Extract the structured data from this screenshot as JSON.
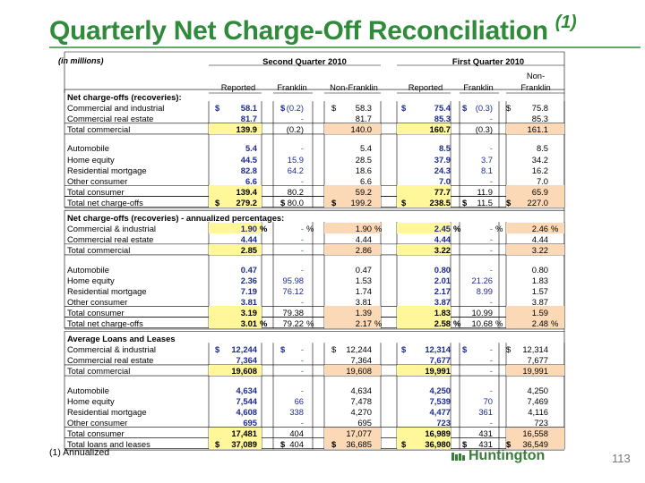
{
  "title": "Quarterly Net Charge-Off Reconciliation",
  "title_note": "(1)",
  "units": "(in millions)",
  "periods": [
    "Second Quarter 2010",
    "First Quarter 2010"
  ],
  "col_headers": [
    "Reported",
    "Franklin",
    "Non-Franklin",
    "Reported",
    "Franklin",
    "Non-Franklin"
  ],
  "col_header_nonfranklin_q1_top": "Non-",
  "col_header_nonfranklin_q1_bottom": "Franklin",
  "sections": [
    {
      "heading": "Net charge-offs (recoveries):",
      "rows": [
        {
          "label": "Commercial and industrial",
          "values": [
            "58.1",
            "(0.2)",
            "58.3",
            "75.4",
            "(0.3)",
            "75.8"
          ],
          "dollar": true
        },
        {
          "label": "Commercial real estate",
          "values": [
            "81.7",
            "-",
            "81.7",
            "85.3",
            "-",
            "85.3"
          ]
        },
        {
          "label": "Total commercial",
          "values": [
            "139.9",
            "(0.2)",
            "140.0",
            "160.7",
            "(0.3)",
            "161.1"
          ],
          "total": true
        },
        {
          "spacer": true
        },
        {
          "label": "Automobile",
          "values": [
            "5.4",
            "-",
            "5.4",
            "8.5",
            "-",
            "8.5"
          ]
        },
        {
          "label": "Home equity",
          "values": [
            "44.5",
            "15.9",
            "28.5",
            "37.9",
            "3.7",
            "34.2"
          ]
        },
        {
          "label": "Residential mortgage",
          "values": [
            "82.8",
            "64.2",
            "18.6",
            "24.3",
            "8.1",
            "16.2"
          ]
        },
        {
          "label": "Other consumer",
          "values": [
            "6.6",
            "-",
            "6.6",
            "7.0",
            "-",
            "7.0"
          ]
        },
        {
          "label": "Total consumer",
          "values": [
            "139.4",
            "80.2",
            "59.2",
            "77.7",
            "11.9",
            "65.9"
          ],
          "total": true
        },
        {
          "label": "Total net charge-offs",
          "values": [
            "279.2",
            "80.0",
            "199.2",
            "238.5",
            "11.5",
            "227.0"
          ],
          "total": true,
          "dollar": true,
          "grand": true
        }
      ]
    },
    {
      "heading": "Net charge-offs (recoveries) - annualized percentages:",
      "rows": [
        {
          "label": "Commercial & industrial",
          "values": [
            "1.90",
            "-",
            "1.90",
            "2.45",
            "-",
            "2.46"
          ],
          "pct": true
        },
        {
          "label": "Commercial real estate",
          "values": [
            "4.44",
            "-",
            "4.44",
            "4.44",
            "-",
            "4.44"
          ]
        },
        {
          "label": "Total commercial",
          "values": [
            "2.85",
            "-",
            "2.86",
            "3.22",
            "-",
            "3.22"
          ],
          "total": true
        },
        {
          "spacer": true
        },
        {
          "label": "Automobile",
          "values": [
            "0.47",
            "-",
            "0.47",
            "0.80",
            "-",
            "0.80"
          ]
        },
        {
          "label": "Home equity",
          "values": [
            "2.36",
            "95.98",
            "1.53",
            "2.01",
            "21.26",
            "1.83"
          ]
        },
        {
          "label": "Residential mortgage",
          "values": [
            "7.19",
            "76.12",
            "1.74",
            "2.17",
            "8.99",
            "1.57"
          ]
        },
        {
          "label": "Other consumer",
          "values": [
            "3.81",
            "-",
            "3.81",
            "3.87",
            "-",
            "3.87"
          ]
        },
        {
          "label": "Total consumer",
          "values": [
            "3.19",
            "79.38",
            "1.39",
            "1.83",
            "10.99",
            "1.59"
          ],
          "total": true
        },
        {
          "label": "Total net charge-offs",
          "values": [
            "3.01",
            "79.22",
            "2.17",
            "2.58",
            "10.68",
            "2.48"
          ],
          "total": true,
          "pct": true,
          "grand": true
        }
      ]
    },
    {
      "heading": "Average Loans and Leases",
      "rows": [
        {
          "label": "Commercial & industrial",
          "values": [
            "12,244",
            "-",
            "12,244",
            "12,314",
            "-",
            "12,314"
          ],
          "dollar": true
        },
        {
          "label": "Commercial real estate",
          "values": [
            "7,364",
            "-",
            "7,364",
            "7,677",
            "-",
            "7,677"
          ]
        },
        {
          "label": "Total commercial",
          "values": [
            "19,608",
            "-",
            "19,608",
            "19,991",
            "-",
            "19,991"
          ],
          "total": true
        },
        {
          "spacer": true
        },
        {
          "label": "Automobile",
          "values": [
            "4,634",
            "-",
            "4,634",
            "4,250",
            "-",
            "4,250"
          ]
        },
        {
          "label": "Home equity",
          "values": [
            "7,544",
            "66",
            "7,478",
            "7,539",
            "70",
            "7,469"
          ]
        },
        {
          "label": "Residential mortgage",
          "values": [
            "4,608",
            "338",
            "4,270",
            "4,477",
            "361",
            "4,116"
          ]
        },
        {
          "label": "Other consumer",
          "values": [
            "695",
            "-",
            "695",
            "723",
            "-",
            "723"
          ]
        },
        {
          "label": "Total consumer",
          "values": [
            "17,481",
            "404",
            "17,077",
            "16,989",
            "431",
            "16,558"
          ],
          "total": true
        },
        {
          "label": "Total loans and leases",
          "values": [
            "37,089",
            "404",
            "36,685",
            "36,980",
            "431",
            "36,549"
          ],
          "total": true,
          "dollar": true,
          "grand": true
        }
      ]
    }
  ],
  "dollar_sign": "$",
  "pct_sign": "%",
  "footnote": "(1)  Annualized",
  "logo_text": "Huntington",
  "page_number": "113",
  "colors": {
    "title": "#2f8a3a",
    "blue": "#1d2b8f",
    "green": "#2e7d32",
    "hl_yellow": "#fff799",
    "hl_peach": "#fcd9b6"
  }
}
